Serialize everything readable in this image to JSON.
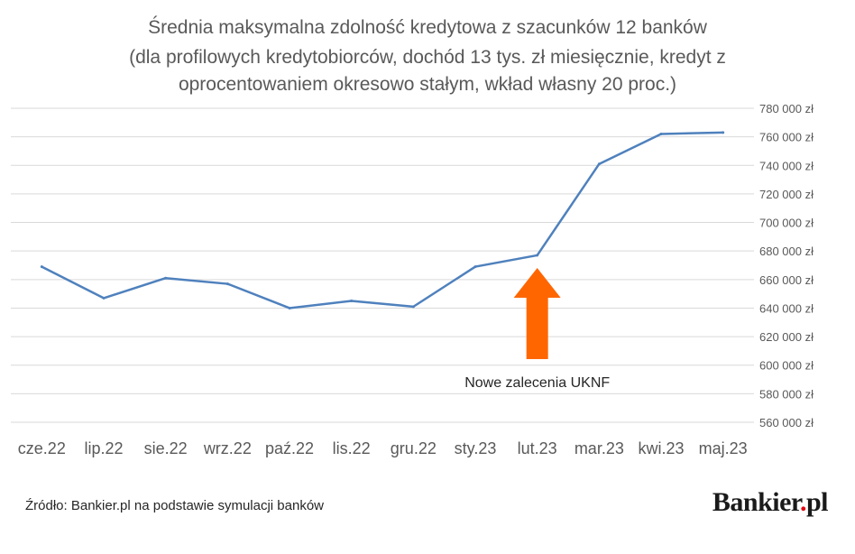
{
  "chart_data": {
    "type": "line",
    "title": [
      "Średnia maksymalna zdolność kredytowa z szacunków 12 banków",
      "(dla profilowych kredytobiorców, dochód 13 tys. zł miesięcznie, kredyt z",
      "oprocentowaniem okresowo stałym, wkład własny 20 proc.)"
    ],
    "categories": [
      "cze.22",
      "lip.22",
      "sie.22",
      "wrz.22",
      "paź.22",
      "lis.22",
      "gru.22",
      "sty.23",
      "lut.23",
      "mar.23",
      "kwi.23",
      "maj.23"
    ],
    "series": [
      {
        "values": [
          669000,
          647000,
          661000,
          657000,
          640000,
          645000,
          641000,
          669000,
          677000,
          741000,
          762000,
          763000
        ],
        "color": "#4f81bd"
      }
    ],
    "ylim": [
      560000,
      780000
    ],
    "ytick_values": [
      560000,
      580000,
      600000,
      620000,
      640000,
      660000,
      680000,
      700000,
      720000,
      740000,
      760000,
      780000
    ],
    "ytick_labels": [
      "560 000 zł",
      "580 000 zł",
      "600 000 zł",
      "620 000 zł",
      "640 000 zł",
      "660 000 zł",
      "680 000 zł",
      "700 000 zł",
      "720 000 zł",
      "740 000 zł",
      "760 000 zł",
      "780 000 zł"
    ],
    "grid": true,
    "axis_side": "right",
    "annotation": {
      "text": "Nowe zalecenia UKNF",
      "category": "lut.23",
      "arrow_color": "#ff6600"
    }
  },
  "footer": {
    "source": "Źródło: Bankier.pl na podstawie symulacji banków",
    "logo_text": "Bankier",
    "logo_dot": ".",
    "logo_suffix": "pl",
    "logo_dot_color": "#e30613"
  }
}
